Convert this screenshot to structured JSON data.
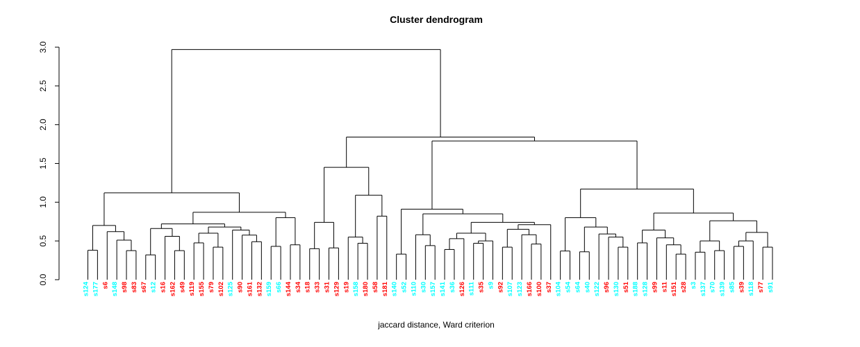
{
  "title": "Cluster dendrogram",
  "xlabel": "jaccard distance, Ward criterion",
  "colors": {
    "red": "#FF0000",
    "cyan": "#00FFFF",
    "line": "#000000",
    "background": "#FFFFFF"
  },
  "chart_data": {
    "type": "dendrogram",
    "title": "Cluster dendrogram",
    "xlabel": "jaccard distance, Ward criterion",
    "ylabel": "",
    "ylim": [
      0.0,
      3.0
    ],
    "yticks": [
      "0.0",
      "0.5",
      "1.0",
      "1.5",
      "2.0",
      "2.5",
      "3.0"
    ],
    "grid": false,
    "legend": "none",
    "root_height": 2.97,
    "leaves": [
      {
        "label": "s124",
        "color": "cyan"
      },
      {
        "label": "s177",
        "color": "cyan"
      },
      {
        "label": "s6",
        "color": "red"
      },
      {
        "label": "s148",
        "color": "cyan"
      },
      {
        "label": "s98",
        "color": "red"
      },
      {
        "label": "s83",
        "color": "red"
      },
      {
        "label": "s67",
        "color": "red"
      },
      {
        "label": "s12",
        "color": "cyan"
      },
      {
        "label": "s16",
        "color": "red"
      },
      {
        "label": "s162",
        "color": "red"
      },
      {
        "label": "s49",
        "color": "red"
      },
      {
        "label": "s119",
        "color": "red"
      },
      {
        "label": "s155",
        "color": "red"
      },
      {
        "label": "s79",
        "color": "red"
      },
      {
        "label": "s102",
        "color": "red"
      },
      {
        "label": "s125",
        "color": "cyan"
      },
      {
        "label": "s90",
        "color": "red"
      },
      {
        "label": "s161",
        "color": "red"
      },
      {
        "label": "s132",
        "color": "red"
      },
      {
        "label": "s159",
        "color": "cyan"
      },
      {
        "label": "s66",
        "color": "cyan"
      },
      {
        "label": "s144",
        "color": "red"
      },
      {
        "label": "s34",
        "color": "red"
      },
      {
        "label": "s18",
        "color": "red"
      },
      {
        "label": "s33",
        "color": "red"
      },
      {
        "label": "s31",
        "color": "red"
      },
      {
        "label": "s129",
        "color": "red"
      },
      {
        "label": "s19",
        "color": "red"
      },
      {
        "label": "s158",
        "color": "cyan"
      },
      {
        "label": "s180",
        "color": "red"
      },
      {
        "label": "s58",
        "color": "red"
      },
      {
        "label": "s181",
        "color": "red"
      },
      {
        "label": "s140",
        "color": "cyan"
      },
      {
        "label": "s52",
        "color": "cyan"
      },
      {
        "label": "s110",
        "color": "cyan"
      },
      {
        "label": "s30",
        "color": "cyan"
      },
      {
        "label": "s157",
        "color": "cyan"
      },
      {
        "label": "s141",
        "color": "cyan"
      },
      {
        "label": "s36",
        "color": "cyan"
      },
      {
        "label": "s126",
        "color": "red"
      },
      {
        "label": "s111",
        "color": "cyan"
      },
      {
        "label": "s35",
        "color": "red"
      },
      {
        "label": "s9",
        "color": "cyan"
      },
      {
        "label": "s92",
        "color": "red"
      },
      {
        "label": "s107",
        "color": "cyan"
      },
      {
        "label": "s123",
        "color": "cyan"
      },
      {
        "label": "s166",
        "color": "red"
      },
      {
        "label": "s100",
        "color": "red"
      },
      {
        "label": "s37",
        "color": "red"
      },
      {
        "label": "s104",
        "color": "cyan"
      },
      {
        "label": "s54",
        "color": "cyan"
      },
      {
        "label": "s64",
        "color": "cyan"
      },
      {
        "label": "s40",
        "color": "cyan"
      },
      {
        "label": "s122",
        "color": "cyan"
      },
      {
        "label": "s96",
        "color": "red"
      },
      {
        "label": "s130",
        "color": "cyan"
      },
      {
        "label": "s51",
        "color": "red"
      },
      {
        "label": "s188",
        "color": "cyan"
      },
      {
        "label": "s128",
        "color": "cyan"
      },
      {
        "label": "s99",
        "color": "red"
      },
      {
        "label": "s11",
        "color": "red"
      },
      {
        "label": "s151",
        "color": "red"
      },
      {
        "label": "s28",
        "color": "red"
      },
      {
        "label": "s3",
        "color": "cyan"
      },
      {
        "label": "s137",
        "color": "cyan"
      },
      {
        "label": "s70",
        "color": "cyan"
      },
      {
        "label": "s139",
        "color": "cyan"
      },
      {
        "label": "s85",
        "color": "cyan"
      },
      {
        "label": "s39",
        "color": "red"
      },
      {
        "label": "s118",
        "color": "cyan"
      },
      {
        "label": "s77",
        "color": "red"
      },
      {
        "label": "s91",
        "color": "cyan"
      }
    ],
    "tree": [
      2.97,
      [
        1.12,
        [
          0.7,
          [
            0.38,
            "s124",
            "s177"
          ],
          [
            0.62,
            "s6",
            [
              0.51,
              "s148",
              [
                0.375,
                "s98",
                "s83"
              ]
            ]
          ]
        ],
        [
          0.87,
          [
            0.72,
            [
              0.66,
              [
                0.32,
                "s67",
                "s12"
              ],
              [
                0.56,
                "s16",
                [
                  0.375,
                  "s162",
                  "s49"
                ]
              ]
            ],
            [
              0.68,
              [
                0.6,
                [
                  0.475,
                  "s119",
                  "s155"
                ],
                [
                  0.42,
                  "s79",
                  "s102"
                ]
              ],
              [
                0.64,
                "s125",
                [
                  0.575,
                  "s90",
                  [
                    0.49,
                    "s161",
                    "s132"
                  ]
                ]
              ]
            ]
          ],
          [
            0.8,
            [
              0.43,
              "s159",
              "s66"
            ],
            [
              0.45,
              "s144",
              "s34"
            ]
          ]
        ]
      ],
      [
        1.84,
        [
          1.45,
          [
            0.74,
            [
              0.4,
              "s18",
              "s33"
            ],
            [
              0.41,
              "s31",
              "s129"
            ]
          ],
          [
            1.09,
            [
              0.55,
              "s19",
              [
                0.47,
                "s158",
                "s180"
              ]
            ],
            [
              0.82,
              "s58",
              "s181"
            ]
          ]
        ],
        [
          1.79,
          [
            0.91,
            [
              0.33,
              "s140",
              "s52"
            ],
            [
              0.85,
              [
                0.58,
                "s110",
                [
                  0.44,
                  "s30",
                  "s157"
                ]
              ],
              [
                0.74,
                [
                  0.6,
                  [
                    0.53,
                    [
                      0.39,
                      "s141",
                      "s36"
                    ],
                    "s126"
                  ],
                  [
                    0.5,
                    [
                      0.47,
                      "s111",
                      "s35"
                    ],
                    "s9"
                  ]
                ],
                [
                  0.71,
                  [
                    0.65,
                    [
                      0.42,
                      "s92",
                      "s107"
                    ],
                    [
                      0.58,
                      "s123",
                      [
                        0.46,
                        "s166",
                        "s100"
                      ]
                    ]
                  ],
                  "s37"
                ]
              ]
            ]
          ],
          [
            1.17,
            [
              0.8,
              [
                0.37,
                "s104",
                "s54"
              ],
              [
                0.68,
                [
                  0.36,
                  "s64",
                  "s40"
                ],
                [
                  0.59,
                  "s122",
                  [
                    0.55,
                    "s96",
                    [
                      0.42,
                      "s130",
                      "s51"
                    ]
                  ]
                ]
              ]
            ],
            [
              0.86,
              [
                0.64,
                [
                  0.475,
                  "s188",
                  "s128"
                ],
                [
                  0.54,
                  "s99",
                  [
                    0.45,
                    "s11",
                    [
                      0.33,
                      "s151",
                      "s28"
                    ]
                  ]
                ]
              ],
              [
                0.76,
                [
                  0.5,
                  [
                    0.355,
                    "s3",
                    "s137"
                  ],
                  [
                    0.375,
                    "s70",
                    "s139"
                  ]
                ],
                [
                  0.61,
                  [
                    0.5,
                    [
                      0.43,
                      "s85",
                      "s39"
                    ],
                    "s118"
                  ],
                  [
                    0.42,
                    "s77",
                    "s91"
                  ]
                ]
              ]
            ]
          ]
        ]
      ]
    ]
  }
}
